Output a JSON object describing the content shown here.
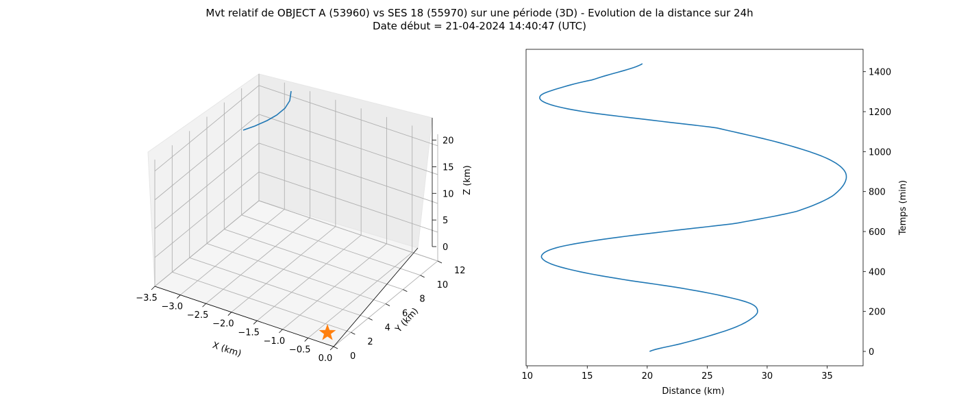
{
  "title": {
    "line1": "Mvt relatif de OBJECT A (53960) vs SES 18 (55970) sur une période (3D) - Evolution de la distance sur 24h",
    "line2": "Date début = 21-04-2024 14:40:47 (UTC)"
  },
  "colors": {
    "series": "#1f77b4",
    "marker": "#ff7f0e",
    "grid": "#b0b0b0",
    "pane": "#f2f2f2"
  },
  "chart_data": [
    {
      "type": "line",
      "projection": "3d",
      "xlabel": "X (km)",
      "ylabel": "Y (km)",
      "zlabel": "Z (km)",
      "xlim": [
        -3.5,
        0.0
      ],
      "ylim": [
        0,
        12
      ],
      "zlim": [
        0,
        22
      ],
      "x_ticks": [
        "−3.5",
        "−3.0",
        "−2.5",
        "−2.0",
        "−1.5",
        "−1.0",
        "−0.5",
        "0.0"
      ],
      "y_ticks": [
        "0",
        "2",
        "4",
        "6",
        "8",
        "10",
        "12"
      ],
      "z_ticks": [
        "0",
        "5",
        "10",
        "15",
        "20"
      ],
      "grid": true,
      "series": [
        {
          "x": [
            -3.1,
            -3.05,
            -2.98,
            -2.9,
            -2.82,
            -2.76,
            -2.72
          ],
          "y": [
            12.4,
            12.1,
            11.8,
            11.6,
            11.5,
            11.5,
            11.6
          ],
          "z": [
            18.8,
            19.6,
            20.5,
            21.4,
            22.1,
            22.6,
            23.0
          ]
        }
      ],
      "markers": [
        {
          "label": "star",
          "x": 0.0,
          "y": 0.0,
          "z": 0.0
        }
      ]
    },
    {
      "type": "line",
      "xlabel": "Distance (km)",
      "ylabel": "Temps (min)",
      "xlim": [
        9.9,
        38.0
      ],
      "ylim": [
        -72,
        1512
      ],
      "x_ticks": [
        "10",
        "15",
        "20",
        "25",
        "30",
        "35"
      ],
      "y_ticks": [
        "0",
        "200",
        "400",
        "600",
        "800",
        "1000",
        "1200",
        "1400"
      ],
      "grid": false,
      "series": [
        {
          "x": [
            20.2,
            22.9,
            25.3,
            27.3,
            28.6,
            29.2,
            28.6,
            26.1,
            22.5,
            18.0,
            14.3,
            11.9,
            11.2,
            12.5,
            16.2,
            21.5,
            27.3,
            32.4,
            35.5,
            36.6,
            35.2,
            31.3,
            25.7,
            20.0,
            14.7,
            11.7,
            11.1,
            12.8,
            15.5,
            19.6
          ],
          "y": [
            0,
            40,
            80,
            120,
            160,
            200,
            240,
            280,
            320,
            360,
            400,
            440,
            480,
            520,
            560,
            600,
            640,
            700,
            780,
            880,
            960,
            1040,
            1120,
            1160,
            1200,
            1240,
            1280,
            1320,
            1360,
            1440
          ]
        }
      ]
    }
  ]
}
